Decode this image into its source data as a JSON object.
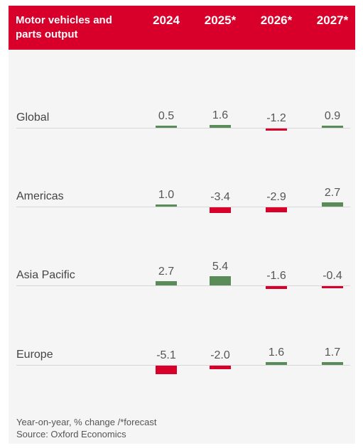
{
  "chart_data": {
    "type": "table",
    "title": "Motor vehicles and parts output",
    "columns": [
      "2024",
      "2025*",
      "2026*",
      "2027*"
    ],
    "rows": [
      {
        "label": "Global",
        "values": [
          0.5,
          1.6,
          -1.2,
          0.9
        ],
        "display": [
          "0.5",
          "1.6",
          "-1.2",
          "0.9"
        ]
      },
      {
        "label": "Americas",
        "values": [
          1.0,
          -3.4,
          -2.9,
          2.7
        ],
        "display": [
          "1.0",
          "-3.4",
          "-2.9",
          "2.7"
        ]
      },
      {
        "label": "Asia Pacific",
        "values": [
          2.7,
          5.4,
          -1.6,
          -0.4
        ],
        "display": [
          "2.7",
          "5.4",
          "-1.6",
          "-0.4"
        ]
      },
      {
        "label": "Europe",
        "values": [
          -5.1,
          -2.0,
          1.6,
          1.7
        ],
        "display": [
          "-5.1",
          "-2.0",
          "1.6",
          "1.7"
        ]
      }
    ],
    "note": "Year-on-year, % change /*forecast",
    "source": "Source: Oxford Economics"
  },
  "colors": {
    "header": "#d8002a",
    "positive": "#5a8c5a",
    "negative": "#d8002a",
    "card": "#f5f5f5"
  }
}
